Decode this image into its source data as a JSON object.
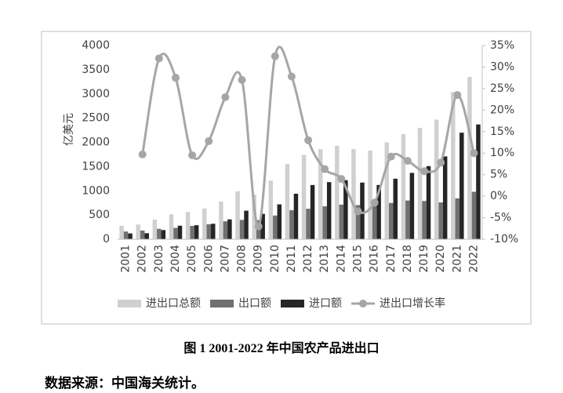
{
  "chart_data": {
    "type": "bar_line",
    "ylabel": "亿美元",
    "categories": [
      "2001",
      "2002",
      "2003",
      "2004",
      "2005",
      "2006",
      "2007",
      "2008",
      "2009",
      "2010",
      "2011",
      "2012",
      "2013",
      "2014",
      "2015",
      "2016",
      "2017",
      "2018",
      "2019",
      "2020",
      "2021",
      "2022"
    ],
    "series": [
      {
        "name": "进出口总额",
        "color": "#d0d0d0",
        "values": [
          280,
          305,
          405,
          515,
          565,
          635,
          780,
          990,
          920,
          1210,
          1550,
          1740,
          1860,
          1930,
          1860,
          1830,
          2000,
          2170,
          2300,
          2470,
          3040,
          3350
        ]
      },
      {
        "name": "出口额",
        "color": "#707070",
        "values": [
          160,
          180,
          215,
          235,
          275,
          310,
          370,
          400,
          395,
          490,
          600,
          630,
          680,
          715,
          705,
          730,
          750,
          800,
          790,
          760,
          845,
          980
        ]
      },
      {
        "name": "进口额",
        "color": "#262626",
        "values": [
          120,
          125,
          190,
          280,
          290,
          320,
          410,
          590,
          525,
          720,
          940,
          1120,
          1180,
          1220,
          1170,
          1120,
          1250,
          1370,
          1510,
          1710,
          2200,
          2370
        ]
      },
      {
        "name": "进出口增长率",
        "color": "#a6a6a6",
        "axis": "y2",
        "type": "line",
        "values": [
          null,
          9.7,
          32,
          27.5,
          9.5,
          12.8,
          23,
          27,
          -7,
          32.5,
          27.8,
          13,
          6.3,
          4,
          -3.5,
          -1.5,
          9.2,
          8.2,
          5.8,
          7.8,
          23.5,
          10
        ]
      }
    ],
    "ylim": [
      0,
      4000
    ],
    "yticks": [
      0,
      500,
      1000,
      1500,
      2000,
      2500,
      3000,
      3500,
      4000
    ],
    "y2lim": [
      -10,
      35
    ],
    "y2ticks": [
      {
        "value": -10,
        "label": "-10%"
      },
      {
        "value": -5,
        "label": "-5%"
      },
      {
        "value": 0,
        "label": "0%"
      },
      {
        "value": 5,
        "label": "5%"
      },
      {
        "value": 10,
        "label": "10%"
      },
      {
        "value": 15,
        "label": "15%"
      },
      {
        "value": 20,
        "label": "20%"
      },
      {
        "value": 25,
        "label": "25%"
      },
      {
        "value": 30,
        "label": "30%"
      },
      {
        "value": 35,
        "label": "35%"
      }
    ],
    "legend": "bottom"
  },
  "caption": "图 1 2001-2022 年中国农产品进出口",
  "source": "数据来源：中国海关统计。"
}
